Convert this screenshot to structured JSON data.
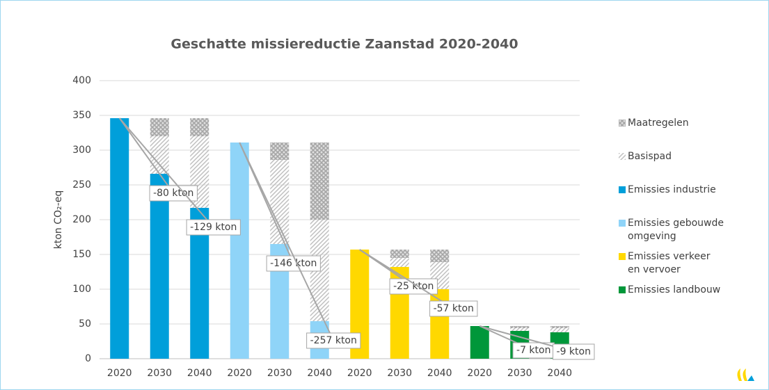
{
  "chart_data": {
    "type": "stacked_bar",
    "title": "Geschatte missiereductie Zaanstad 2020-2040",
    "y_label": "kton CO₂-eq",
    "categories": [
      "2020",
      "2030",
      "2040",
      "2020",
      "2030",
      "2040",
      "2020",
      "2030",
      "2040",
      "2020",
      "2030",
      "2040"
    ],
    "series": [
      {
        "name": "Maatregelen",
        "color": "#a6a6a6",
        "pattern": "crosshatch",
        "values": [
          null,
          26,
          26,
          null,
          25,
          111,
          null,
          12,
          18,
          null,
          3,
          3
        ]
      },
      {
        "name": "Basispad",
        "color": "#bfbfbf",
        "pattern": "diagonal",
        "values": [
          null,
          54,
          103,
          null,
          121,
          146,
          null,
          13,
          39,
          null,
          4,
          6
        ]
      },
      {
        "name": "Emissies industrie",
        "color": "#009fda",
        "values": [
          346,
          266,
          217,
          null,
          null,
          null,
          null,
          null,
          null,
          null,
          null,
          null
        ]
      },
      {
        "name": "Emissies gebouwde omgeving",
        "color": "#8fd4f8",
        "values": [
          null,
          null,
          null,
          311,
          165,
          54,
          null,
          null,
          null,
          null,
          null,
          null
        ]
      },
      {
        "name": "Emissies verkeer en vervoer",
        "color": "#ffd800",
        "values": [
          null,
          null,
          null,
          null,
          null,
          null,
          157,
          132,
          100,
          null,
          null,
          null
        ]
      },
      {
        "name": "Emissies landbouw",
        "color": "#00973a",
        "values": [
          null,
          null,
          null,
          null,
          null,
          null,
          null,
          null,
          null,
          47,
          40,
          38
        ]
      }
    ],
    "annotations": [
      "-80 kton",
      "-129 kton",
      "-146 kton",
      "-257 kton",
      "-25 kton",
      "-57 kton",
      "-7 kton",
      "-9 kton"
    ],
    "ylim": [
      0,
      400
    ],
    "yticks": [
      0,
      50,
      100,
      150,
      200,
      250,
      300,
      350,
      400
    ],
    "grid": true,
    "legend": "right"
  }
}
